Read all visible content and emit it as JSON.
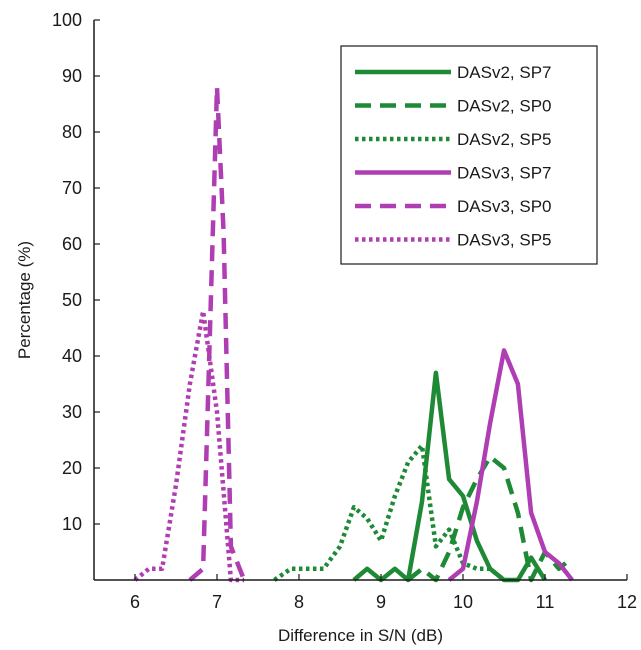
{
  "chart_data": {
    "type": "line",
    "title": "",
    "xlabel": "Difference in S/N (dB)",
    "ylabel": "Percentage (%)",
    "xlim": [
      5.5,
      12
    ],
    "ylim": [
      0,
      100
    ],
    "xticks": [
      6,
      7,
      8,
      9,
      10,
      11,
      12
    ],
    "yticks": [
      10,
      20,
      30,
      40,
      50,
      60,
      70,
      80,
      90,
      100
    ],
    "grid": false,
    "legend_position": "top-right",
    "colors": {
      "green": "#1e8a35",
      "purple": "#b03eb3"
    },
    "series": [
      {
        "name": "DASv2, SP7",
        "color": "#1e8a35",
        "dash": "solid",
        "x": [
          8.67,
          8.83,
          9.0,
          9.17,
          9.33,
          9.5,
          9.67,
          9.83,
          10.0,
          10.17,
          10.33,
          10.5,
          10.67,
          10.83,
          11.0
        ],
        "y": [
          0,
          2,
          0,
          2,
          0,
          14,
          37,
          18,
          15,
          7,
          2,
          0,
          0,
          4,
          0
        ]
      },
      {
        "name": "DASv2, SP0",
        "color": "#1e8a35",
        "dash": "dash",
        "x": [
          9.33,
          9.5,
          9.67,
          9.83,
          10.0,
          10.17,
          10.33,
          10.5,
          10.67,
          10.83,
          11.0,
          11.17,
          11.33
        ],
        "y": [
          0,
          2,
          0,
          5,
          13,
          18,
          22,
          20,
          12,
          0,
          5,
          2,
          4
        ]
      },
      {
        "name": "DASv2, SP5",
        "color": "#1e8a35",
        "dash": "dot",
        "x": [
          7.7,
          7.9,
          8.1,
          8.3,
          8.5,
          8.67,
          8.83,
          9.0,
          9.17,
          9.33,
          9.5,
          9.67,
          9.83,
          10.0,
          10.17,
          10.33,
          10.5
        ],
        "y": [
          0,
          2,
          2,
          2,
          6,
          13,
          11,
          7,
          15,
          21,
          24,
          6,
          9,
          3,
          2,
          2,
          0
        ]
      },
      {
        "name": "DASv3, SP7",
        "color": "#b03eb3",
        "dash": "solid",
        "x": [
          9.83,
          10.0,
          10.17,
          10.33,
          10.5,
          10.67,
          10.83,
          11.0,
          11.17,
          11.33
        ],
        "y": [
          0,
          2,
          14,
          28,
          41,
          35,
          12,
          5,
          3,
          0
        ]
      },
      {
        "name": "DASv3, SP0",
        "color": "#b03eb3",
        "dash": "dash",
        "x": [
          6.67,
          6.83,
          7.0,
          7.08,
          7.17,
          7.33
        ],
        "y": [
          0,
          2,
          88,
          62,
          6,
          0
        ]
      },
      {
        "name": "DASv3, SP5",
        "color": "#b03eb3",
        "dash": "dot",
        "x": [
          6.0,
          6.17,
          6.33,
          6.5,
          6.67,
          6.83,
          7.0,
          7.17,
          7.33
        ],
        "y": [
          0,
          2,
          2,
          17,
          35,
          48,
          30,
          0,
          0
        ]
      }
    ]
  }
}
